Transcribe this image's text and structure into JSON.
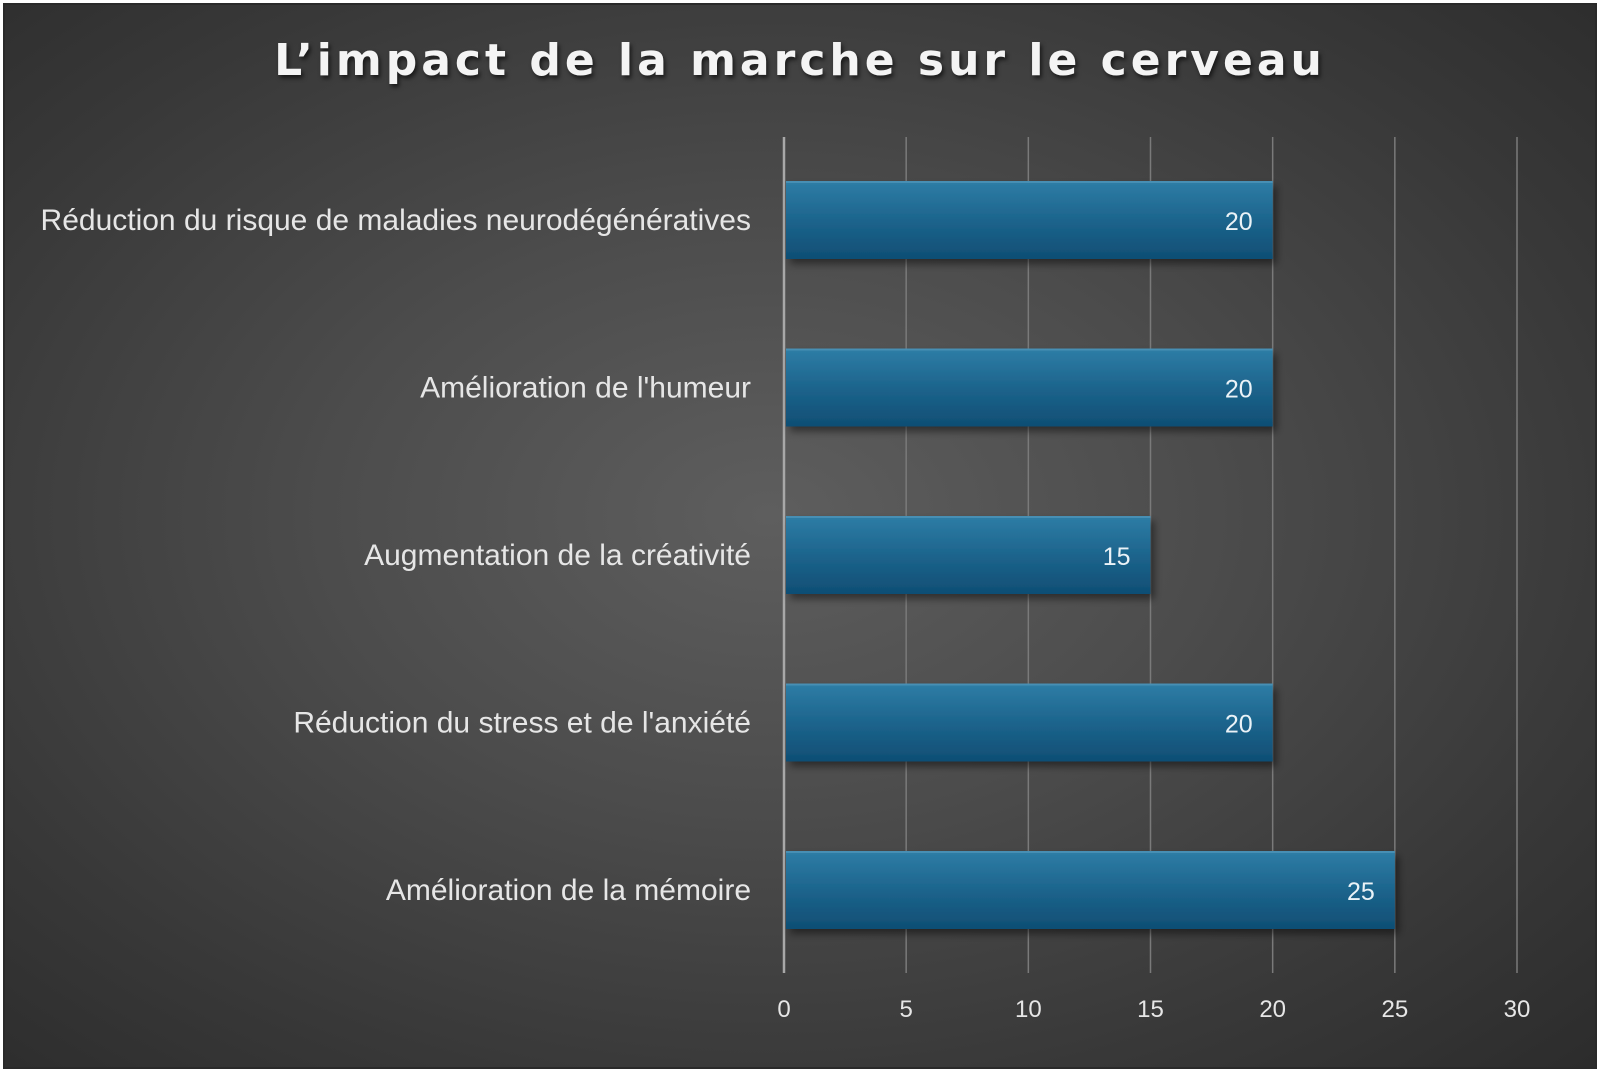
{
  "chart_data": {
    "type": "bar",
    "orientation": "horizontal",
    "title": "L’impact de la marche sur le cerveau",
    "categories": [
      "Réduction du risque de maladies neurodégénératives",
      "Amélioration de l'humeur",
      "Augmentation de la créativité",
      "Réduction du stress et de l'anxiété",
      "Amélioration de la mémoire"
    ],
    "values": [
      20,
      20,
      15,
      20,
      25
    ],
    "xlim": [
      0,
      30
    ],
    "xticks": [
      0,
      5,
      10,
      15,
      20,
      25,
      30
    ],
    "grid": true,
    "data_labels": true,
    "bar_color": "#1e6a92",
    "background": "#4a4a4a"
  }
}
